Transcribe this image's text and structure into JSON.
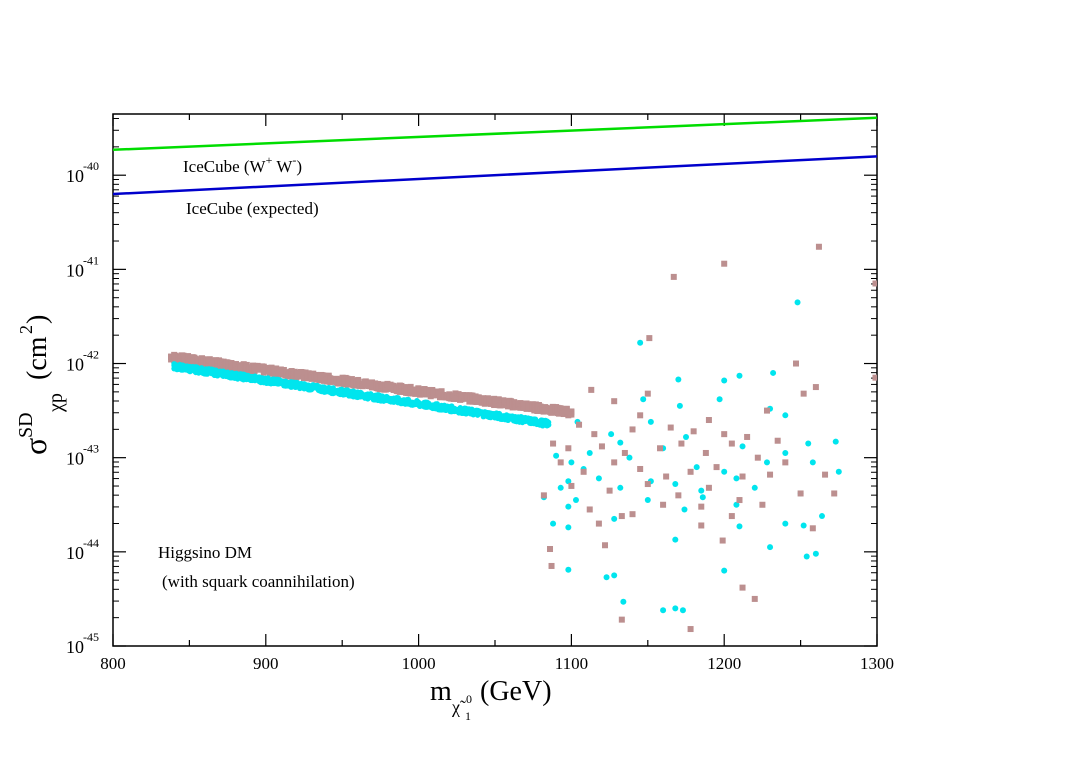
{
  "chart_data": {
    "type": "scatter",
    "title": "",
    "xlabel_main": "m",
    "xlabel_sub": "χ̃",
    "xlabel_sub_index": "1",
    "xlabel_sup": "0",
    "xlabel_unit": "(GeV)",
    "ylabel_sigma": "σ",
    "ylabel_sup": "SD",
    "ylabel_sub": "χp",
    "ylabel_unit": "(cm",
    "ylabel_unit_sup": "2",
    "ylabel_unit_close": ")",
    "xlim": [
      800,
      1300
    ],
    "ylim_log10": [
      -45,
      -39.35
    ],
    "x_ticks": [
      800,
      900,
      1000,
      1100,
      1200,
      1300
    ],
    "x_tick_labels": [
      "800",
      "900",
      "1000",
      "1100",
      "1200",
      "1300"
    ],
    "y_ticks_log10": [
      -45,
      -44,
      -43,
      -42,
      -41,
      -40
    ],
    "y_tick_base": "10",
    "y_tick_exponents": [
      "-45",
      "-44",
      "-43",
      "-42",
      "-41",
      "-40"
    ],
    "annotations": {
      "icecube_ww_main": "IceCube (W",
      "icecube_ww_sup1": "+",
      "icecube_ww_mid": " W",
      "icecube_ww_sup2": "-",
      "icecube_ww_close": ")",
      "icecube_expected": "IceCube (expected)",
      "higgsino_line1": "Higgsino DM",
      "higgsino_line2": "(with squark coannihilation)"
    },
    "series": [
      {
        "name": "IceCube (W+ W-)",
        "kind": "line",
        "color": "#00dd00",
        "x": [
          800,
          1300
        ],
        "y_log10": [
          -39.73,
          -39.39
        ]
      },
      {
        "name": "IceCube (expected)",
        "kind": "line",
        "color": "#0000cc",
        "x": [
          800,
          1300
        ],
        "y_log10": [
          -40.2,
          -39.8
        ]
      },
      {
        "name": "Higgsino band (brown)",
        "kind": "band",
        "color": "#bc8f8f",
        "x_start": 838,
        "x_end": 1100,
        "y_start_log10": -41.93,
        "y_end_log10": -42.52,
        "width_log10": 0.07
      },
      {
        "name": "Higgsino band (cyan)",
        "kind": "band",
        "color": "#00e5ee",
        "x_start": 840,
        "x_end": 1085,
        "y_start_log10": -42.03,
        "y_end_log10": -42.64,
        "width_log10": 0.06
      },
      {
        "name": "Brown scatter",
        "kind": "scatter",
        "marker": "square",
        "color": "#bc8f8f",
        "points": [
          [
            1167,
            -41.08
          ],
          [
            1200,
            -40.94
          ],
          [
            1262,
            -40.76
          ],
          [
            1299,
            -41.15
          ],
          [
            1151,
            -41.73
          ],
          [
            1247,
            -42.0
          ],
          [
            1299,
            -42.15
          ],
          [
            1113,
            -42.28
          ],
          [
            1128,
            -42.4
          ],
          [
            1150,
            -42.32
          ],
          [
            1252,
            -42.32
          ],
          [
            1260,
            -42.25
          ],
          [
            1145,
            -42.55
          ],
          [
            1190,
            -42.6
          ],
          [
            1228,
            -42.5
          ],
          [
            1105,
            -42.65
          ],
          [
            1115,
            -42.75
          ],
          [
            1140,
            -42.7
          ],
          [
            1165,
            -42.68
          ],
          [
            1180,
            -42.72
          ],
          [
            1200,
            -42.75
          ],
          [
            1215,
            -42.78
          ],
          [
            1235,
            -42.82
          ],
          [
            1088,
            -42.85
          ],
          [
            1098,
            -42.9
          ],
          [
            1120,
            -42.88
          ],
          [
            1135,
            -42.95
          ],
          [
            1158,
            -42.9
          ],
          [
            1172,
            -42.85
          ],
          [
            1188,
            -42.95
          ],
          [
            1205,
            -42.85
          ],
          [
            1222,
            -43.0
          ],
          [
            1240,
            -43.05
          ],
          [
            1093,
            -43.05
          ],
          [
            1108,
            -43.15
          ],
          [
            1128,
            -43.05
          ],
          [
            1145,
            -43.12
          ],
          [
            1162,
            -43.2
          ],
          [
            1178,
            -43.15
          ],
          [
            1195,
            -43.1
          ],
          [
            1212,
            -43.2
          ],
          [
            1230,
            -43.18
          ],
          [
            1100,
            -43.3
          ],
          [
            1125,
            -43.35
          ],
          [
            1150,
            -43.28
          ],
          [
            1170,
            -43.4
          ],
          [
            1190,
            -43.32
          ],
          [
            1210,
            -43.45
          ],
          [
            1250,
            -43.38
          ],
          [
            1272,
            -43.38
          ],
          [
            1082,
            -43.4
          ],
          [
            1112,
            -43.55
          ],
          [
            1140,
            -43.6
          ],
          [
            1160,
            -43.5
          ],
          [
            1185,
            -43.52
          ],
          [
            1205,
            -43.62
          ],
          [
            1225,
            -43.5
          ],
          [
            1266,
            -43.18
          ],
          [
            1118,
            -43.7
          ],
          [
            1133,
            -43.62
          ],
          [
            1185,
            -43.72
          ],
          [
            1199,
            -43.88
          ],
          [
            1258,
            -43.75
          ],
          [
            1086,
            -43.97
          ],
          [
            1122,
            -43.93
          ],
          [
            1087,
            -44.15
          ],
          [
            1212,
            -44.38
          ],
          [
            1220,
            -44.5
          ],
          [
            1133,
            -44.72
          ],
          [
            1178,
            -44.82
          ]
        ]
      },
      {
        "name": "Cyan scatter",
        "kind": "scatter",
        "marker": "circle",
        "color": "#00e5ee",
        "points": [
          [
            1248,
            -41.35
          ],
          [
            1145,
            -41.78
          ],
          [
            1232,
            -42.1
          ],
          [
            1170,
            -42.17
          ],
          [
            1210,
            -42.13
          ],
          [
            1200,
            -42.18
          ],
          [
            1147,
            -42.38
          ],
          [
            1171,
            -42.45
          ],
          [
            1197,
            -42.38
          ],
          [
            1230,
            -42.48
          ],
          [
            1240,
            -42.55
          ],
          [
            1255,
            -42.85
          ],
          [
            1273,
            -42.83
          ],
          [
            1152,
            -42.62
          ],
          [
            1104,
            -42.62
          ],
          [
            1126,
            -42.75
          ],
          [
            1175,
            -42.78
          ],
          [
            1132,
            -42.84
          ],
          [
            1160,
            -42.9
          ],
          [
            1212,
            -42.88
          ],
          [
            1240,
            -42.95
          ],
          [
            1090,
            -42.98
          ],
          [
            1112,
            -42.95
          ],
          [
            1100,
            -43.05
          ],
          [
            1138,
            -43.0
          ],
          [
            1182,
            -43.1
          ],
          [
            1200,
            -43.15
          ],
          [
            1228,
            -43.05
          ],
          [
            1108,
            -43.12
          ],
          [
            1258,
            -43.05
          ],
          [
            1275,
            -43.15
          ],
          [
            1098,
            -43.25
          ],
          [
            1118,
            -43.22
          ],
          [
            1152,
            -43.25
          ],
          [
            1185,
            -43.35
          ],
          [
            1208,
            -43.22
          ],
          [
            1250,
            -43.38
          ],
          [
            1093,
            -43.32
          ],
          [
            1132,
            -43.32
          ],
          [
            1168,
            -43.28
          ],
          [
            1220,
            -43.32
          ],
          [
            1082,
            -43.42
          ],
          [
            1103,
            -43.45
          ],
          [
            1150,
            -43.45
          ],
          [
            1186,
            -43.42
          ],
          [
            1264,
            -43.62
          ],
          [
            1098,
            -43.52
          ],
          [
            1174,
            -43.55
          ],
          [
            1128,
            -43.65
          ],
          [
            1208,
            -43.5
          ],
          [
            1252,
            -43.72
          ],
          [
            1088,
            -43.7
          ],
          [
            1210,
            -43.73
          ],
          [
            1240,
            -43.7
          ],
          [
            1098,
            -43.74
          ],
          [
            1168,
            -43.87
          ],
          [
            1230,
            -43.95
          ],
          [
            1254,
            -44.05
          ],
          [
            1260,
            -44.02
          ],
          [
            1200,
            -44.2
          ],
          [
            1098,
            -44.19
          ],
          [
            1123,
            -44.27
          ],
          [
            1128,
            -44.25
          ],
          [
            1134,
            -44.53
          ],
          [
            1160,
            -44.62
          ],
          [
            1168,
            -44.6
          ],
          [
            1173,
            -44.62
          ]
        ]
      }
    ]
  }
}
